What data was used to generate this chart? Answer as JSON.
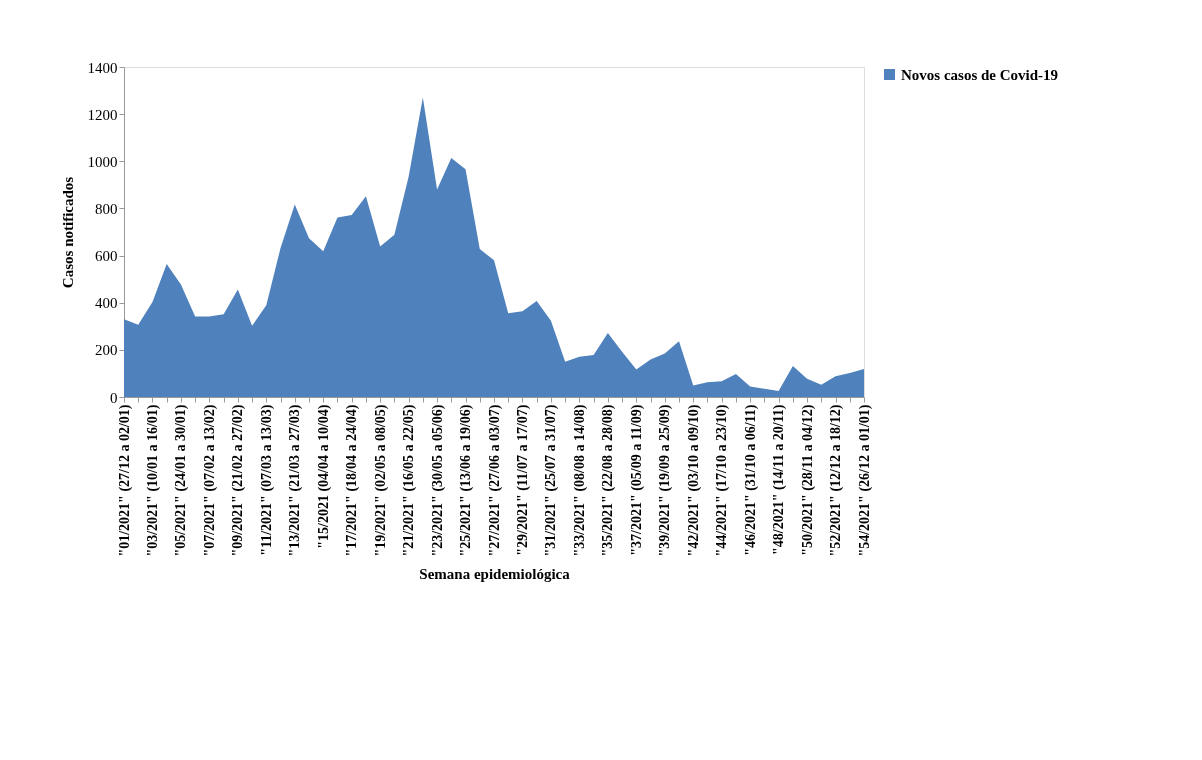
{
  "chart_data": {
    "type": "area",
    "xlabel": "Semana epidemiológica",
    "ylabel": "Casos notificados",
    "categories": [
      "\"01/2021\" (27/12 a 02/01)",
      null,
      "\"03/2021\" (10/01 a 16/01)",
      null,
      "\"05/2021\" (24/01 a 30/01)",
      null,
      "\"07/2021\" (07/02 a 13/02)",
      null,
      "\"09/2021\" (21/02 a 27/02)",
      null,
      "\"11/2021\" (07/03 a 13/03)",
      null,
      "\"13/2021\" (21/03 a 27/03)",
      null,
      "\"15/2021 (04/04 a 10/04)",
      null,
      "\"17/2021\" (18/04 a 24/04)",
      null,
      "\"19/2021\" (02/05 a 08/05)",
      null,
      "\"21/2021\" (16/05 a 22/05)",
      null,
      "\"23/2021\" (30/05 a 05/06)",
      null,
      "\"25/2021\" (13/06 a 19/06)",
      null,
      "\"27/2021\" (27/06 a 03/07)",
      null,
      "\"29/2021\" (11/07 a 17/07)",
      null,
      "\"31/2021\" (25/07 a 31/07)",
      null,
      "\"33/2021\" (08/08 a 14/08)",
      null,
      "\"35/2021\" (22/08 a 28/08)",
      null,
      "\"37/2021\" (05/09 a 11/09)",
      null,
      "\"39/2021\" (19/09 a 25/09)",
      null,
      "\"42/2021\" (03/10 a 09/10)",
      null,
      "\"44/2021\" (17/10 a 23/10)",
      null,
      "\"46/2021\" (31/10 a 06/11)",
      null,
      "\"48/2021\" (14/11 a 20/11)",
      null,
      "\"50/2021\" (28/11 a 04/12)",
      null,
      "\"52/2021\" (12/12 a 18/12)",
      null,
      "\"54/2021\" (26/12 a 01/01)"
    ],
    "series": [
      {
        "name": "Novos casos de Covid-19",
        "color": "#4f81bd",
        "values": [
          330,
          306,
          403,
          564,
          477,
          341,
          341,
          351,
          456,
          302,
          389,
          632,
          817,
          674,
          618,
          762,
          772,
          852,
          639,
          688,
          934,
          1271,
          880,
          1014,
          966,
          628,
          580,
          355,
          364,
          407,
          323,
          150,
          171,
          178,
          271,
          192,
          117,
          159,
          185,
          236,
          49,
          63,
          67,
          98,
          45,
          35,
          25,
          131,
          77,
          52,
          88,
          102,
          119
        ]
      }
    ],
    "ylim": [
      0,
      1400
    ],
    "yticks": [
      0,
      200,
      400,
      600,
      800,
      1000,
      1200,
      1400
    ],
    "grid": false,
    "legend": "right"
  }
}
